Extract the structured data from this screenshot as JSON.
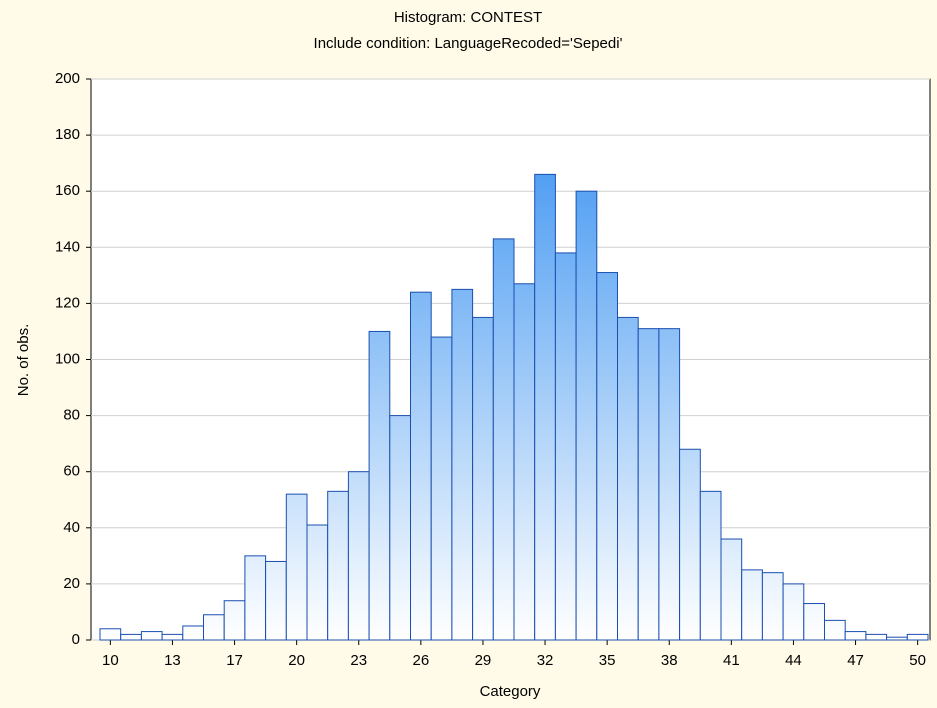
{
  "chart_data": {
    "type": "bar",
    "title": "Histogram: CONTEST",
    "subtitle": "Include condition: LanguageRecoded='Sepedi'",
    "x_label": "Category",
    "y_label": "No. of obs.",
    "categories": [
      "10",
      null,
      null,
      "13",
      null,
      null,
      "17",
      null,
      null,
      "20",
      null,
      null,
      "23",
      null,
      null,
      "26",
      null,
      null,
      "29",
      null,
      null,
      "32",
      null,
      null,
      "35",
      null,
      null,
      "38",
      null,
      null,
      "41",
      null,
      null,
      "44",
      null,
      null,
      "47",
      null,
      null,
      "50"
    ],
    "values": [
      4,
      2,
      3,
      2,
      5,
      9,
      14,
      30,
      28,
      52,
      41,
      53,
      60,
      110,
      80,
      124,
      108,
      125,
      115,
      143,
      127,
      166,
      138,
      160,
      131,
      115,
      111,
      111,
      68,
      53,
      36,
      25,
      24,
      20,
      13,
      7,
      3,
      2,
      1,
      2
    ],
    "color": "#2f8cf0",
    "ylim": [
      0,
      200
    ],
    "yticks": [
      0,
      20,
      40,
      60,
      80,
      100,
      120,
      140,
      160,
      180,
      200
    ],
    "grid": true
  }
}
